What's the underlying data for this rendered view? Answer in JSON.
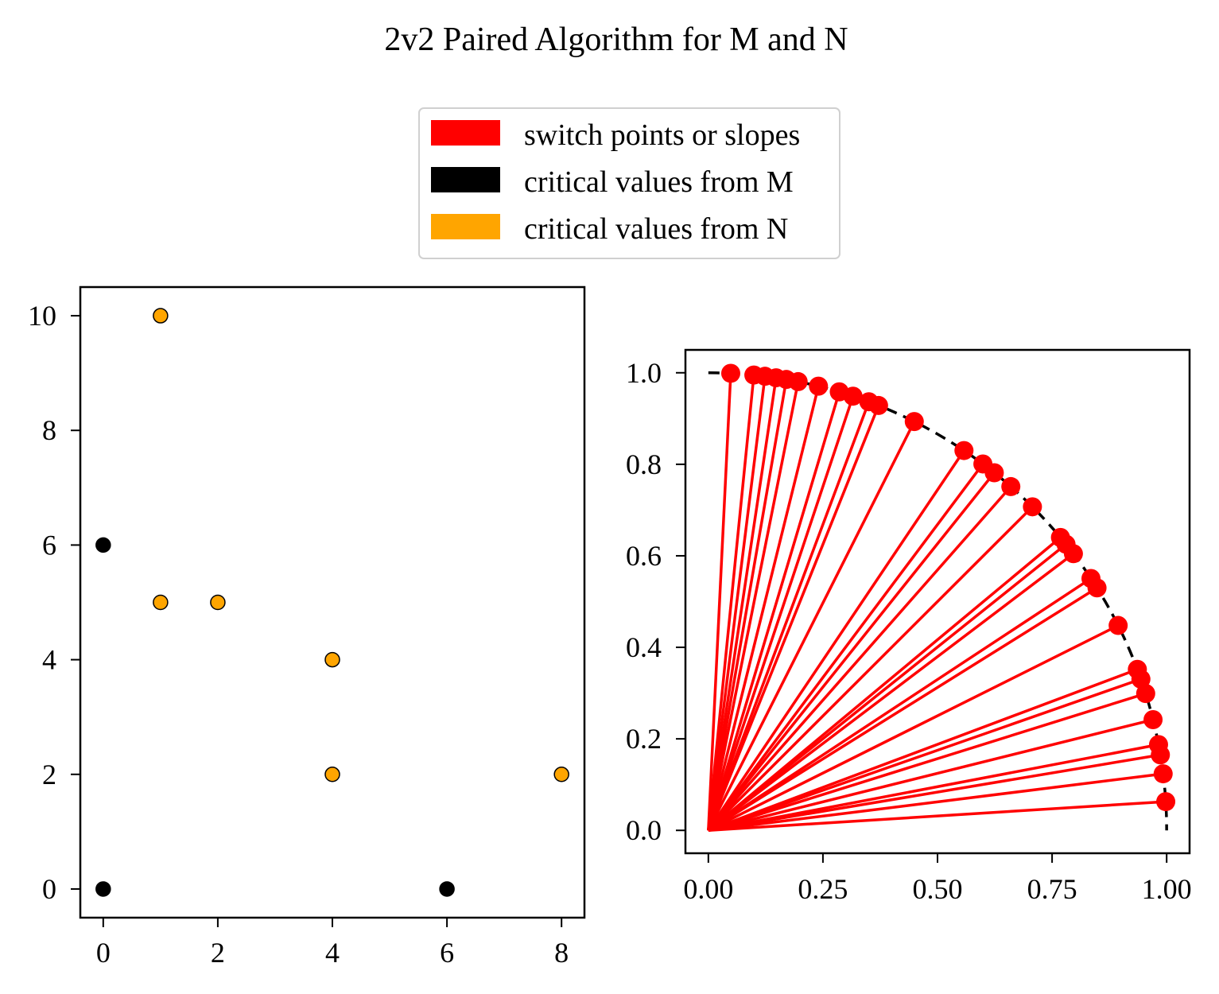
{
  "figure": {
    "title": "2v2 Paired Algorithm for M and N"
  },
  "legend": {
    "placement": "top-center",
    "entries": [
      {
        "label": "switch points or slopes",
        "color": "#ff0000"
      },
      {
        "label": "critical values from M",
        "color": "#000000"
      },
      {
        "label": "critical values from N",
        "color": "#ffa500"
      }
    ]
  },
  "chart_data": [
    {
      "type": "scatter",
      "title": "",
      "xlabel": "",
      "ylabel": "",
      "xlim": [
        -0.4,
        8.4
      ],
      "ylim": [
        -0.5,
        10.5
      ],
      "xticks": [
        0,
        2,
        4,
        6,
        8
      ],
      "yticks": [
        0,
        2,
        4,
        6,
        8,
        10
      ],
      "series": [
        {
          "name": "critical values from M",
          "color": "#000000",
          "edge": "#000000",
          "points": [
            [
              0,
              6
            ],
            [
              0,
              0
            ],
            [
              6,
              0
            ]
          ]
        },
        {
          "name": "critical values from N",
          "color": "#ffa500",
          "edge": "#000000",
          "points": [
            [
              1,
              10
            ],
            [
              1,
              5
            ],
            [
              2,
              5
            ],
            [
              4,
              4
            ],
            [
              4,
              2
            ],
            [
              8,
              2
            ]
          ]
        }
      ]
    },
    {
      "type": "line",
      "title": "",
      "xlabel": "",
      "ylabel": "",
      "xlim": [
        -0.05,
        1.05
      ],
      "ylim": [
        -0.05,
        1.05
      ],
      "xticks": [
        "0.00",
        "0.25",
        "0.50",
        "0.75",
        "1.00"
      ],
      "yticks": [
        "0.0",
        "0.2",
        "0.4",
        "0.6",
        "0.8",
        "1.0"
      ],
      "series": [
        {
          "name": "unit circle arc",
          "style": "dashed",
          "color": "#000000",
          "from_deg": 90,
          "to_deg": 0
        },
        {
          "name": "switch points or slopes",
          "color": "#ff0000",
          "origin": [
            0,
            0
          ],
          "angles_deg": [
            87.2,
            84.3,
            82.9,
            81.5,
            80.2,
            78.7,
            76.1,
            73.4,
            71.6,
            69.5,
            68.2,
            63.3,
            56.1,
            53.2,
            51.4,
            48.7,
            45.0,
            39.8,
            38.7,
            37.2,
            33.4,
            32.0,
            26.6,
            20.6,
            19.3,
            17.4,
            14.0,
            10.8,
            9.5,
            7.1,
            3.6
          ]
        }
      ]
    }
  ]
}
